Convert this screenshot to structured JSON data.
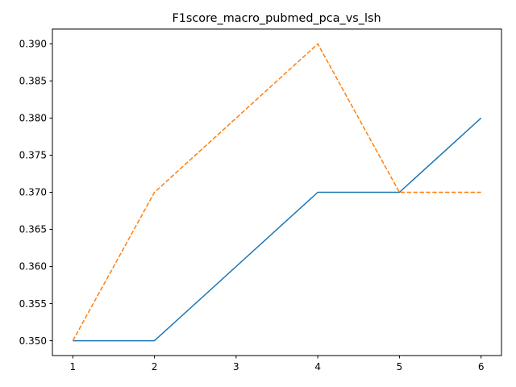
{
  "chart_data": {
    "type": "line",
    "title": "F1score_macro_pubmed_pca_vs_lsh",
    "xlabel": "",
    "ylabel": "",
    "x": [
      1,
      2,
      4,
      5,
      6
    ],
    "x_ticks": [
      "1",
      "2",
      "3",
      "4",
      "5",
      "6"
    ],
    "y_ticks": [
      "0.350",
      "0.355",
      "0.360",
      "0.365",
      "0.370",
      "0.375",
      "0.380",
      "0.385",
      "0.390"
    ],
    "xlim": [
      0.75,
      6.25
    ],
    "ylim": [
      0.348,
      0.392
    ],
    "grid": false,
    "series": [
      {
        "values": [
          0.35,
          0.35,
          0.37,
          0.37,
          0.38
        ],
        "color": "#1f77b4",
        "style": "solid"
      },
      {
        "values": [
          0.35,
          0.37,
          0.39,
          0.37,
          0.37
        ],
        "color": "#ff7f0e",
        "style": "dashed"
      }
    ]
  }
}
